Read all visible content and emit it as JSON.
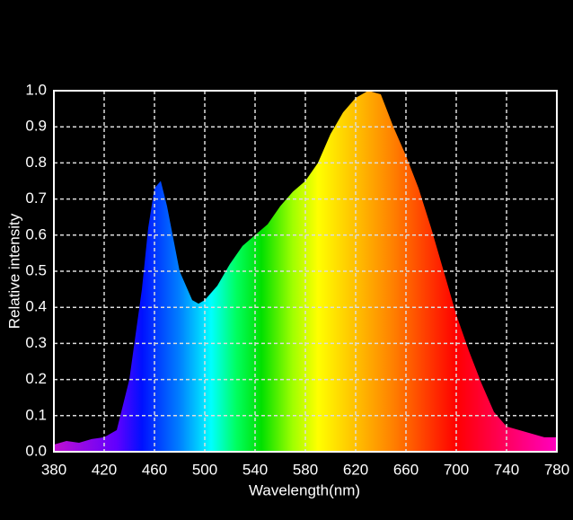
{
  "chart_data": {
    "type": "area",
    "x_label": "Wavelength(nm)",
    "y_label": "Relative intensity",
    "x": [
      380,
      390,
      400,
      410,
      420,
      430,
      440,
      450,
      455,
      460,
      465,
      470,
      480,
      490,
      495,
      500,
      510,
      520,
      530,
      540,
      550,
      560,
      570,
      580,
      590,
      600,
      610,
      620,
      630,
      640,
      650,
      660,
      670,
      680,
      690,
      700,
      710,
      720,
      730,
      740,
      750,
      760,
      770,
      780
    ],
    "values": [
      0.02,
      0.03,
      0.025,
      0.035,
      0.04,
      0.06,
      0.2,
      0.45,
      0.62,
      0.73,
      0.75,
      0.68,
      0.5,
      0.42,
      0.41,
      0.42,
      0.46,
      0.52,
      0.57,
      0.6,
      0.63,
      0.68,
      0.72,
      0.75,
      0.8,
      0.88,
      0.94,
      0.98,
      1.0,
      0.99,
      0.9,
      0.82,
      0.73,
      0.62,
      0.5,
      0.38,
      0.28,
      0.19,
      0.11,
      0.07,
      0.06,
      0.05,
      0.04,
      0.04
    ],
    "fill_gradient": [
      {
        "x": 380,
        "color": "#c010d0"
      },
      {
        "x": 430,
        "color": "#6000ff"
      },
      {
        "x": 450,
        "color": "#0010ff"
      },
      {
        "x": 480,
        "color": "#0080ff"
      },
      {
        "x": 505,
        "color": "#00ffff"
      },
      {
        "x": 525,
        "color": "#00ff60"
      },
      {
        "x": 545,
        "color": "#00e000"
      },
      {
        "x": 570,
        "color": "#a0ff00"
      },
      {
        "x": 590,
        "color": "#ffff00"
      },
      {
        "x": 620,
        "color": "#ffc000"
      },
      {
        "x": 650,
        "color": "#ff8000"
      },
      {
        "x": 700,
        "color": "#ff0000"
      },
      {
        "x": 740,
        "color": "#ff0060"
      },
      {
        "x": 780,
        "color": "#ff00c0"
      }
    ],
    "xlim": [
      380,
      780
    ],
    "xticks": [
      380,
      420,
      460,
      500,
      540,
      580,
      620,
      660,
      700,
      740,
      780
    ],
    "ylim": [
      0,
      1
    ],
    "yticks": [
      {
        "value": 0,
        "label": "0.0"
      },
      0.1,
      0.2,
      0.3,
      0.4,
      0.5,
      0.6,
      0.7,
      0.8,
      0.9,
      {
        "value": 1,
        "label": "1.0"
      }
    ],
    "grid": true
  }
}
